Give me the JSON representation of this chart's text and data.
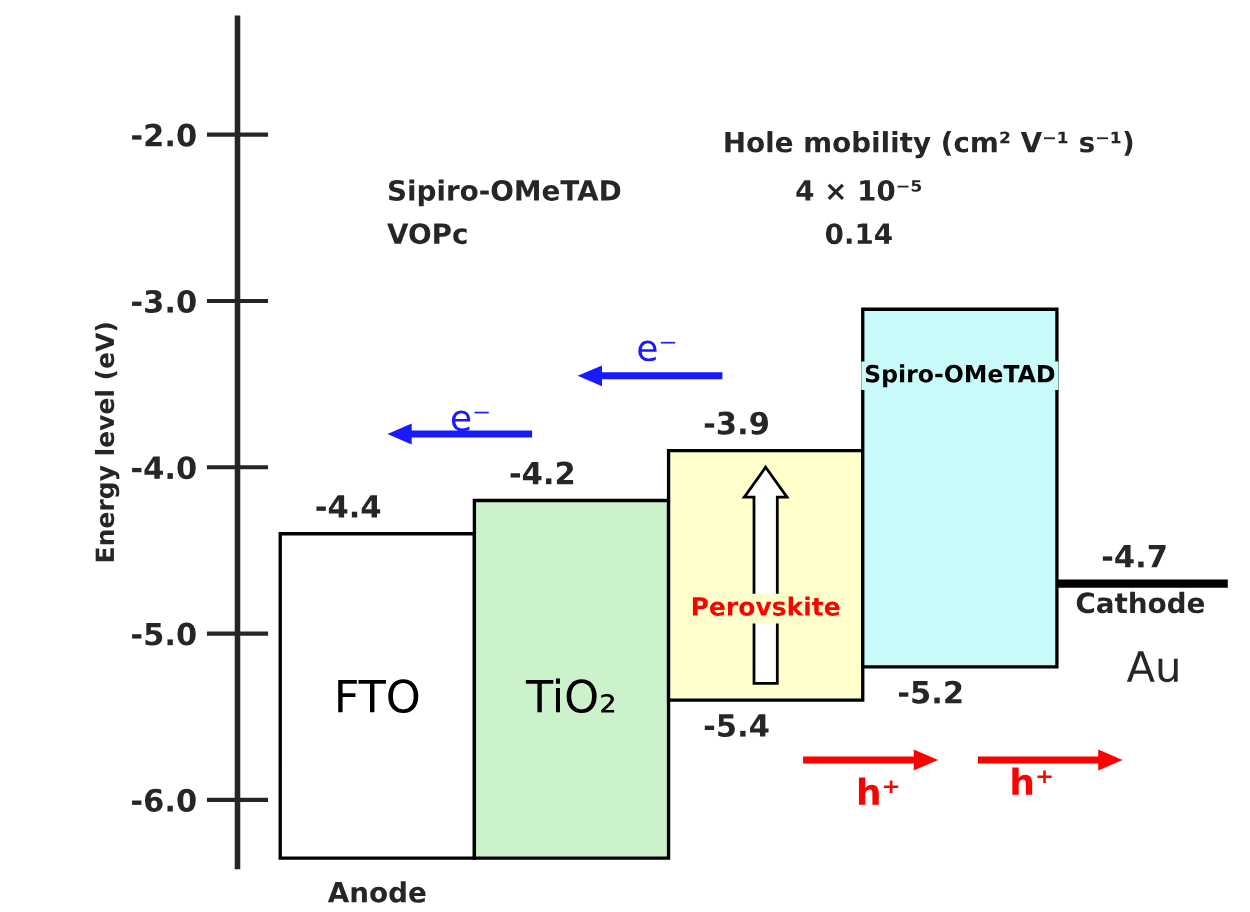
{
  "chart_data": {
    "type": "bar",
    "categories": [
      "FTO",
      "TiO₂",
      "Perovskite",
      "Spiro-OMeTAD"
    ],
    "values": [
      1.95,
      2.15,
      1.5,
      2.15
    ],
    "base": [
      -6.35,
      -6.35,
      -5.4,
      -5.2
    ],
    "colors": [
      "#ffffff",
      "#ccf2cc",
      "#ffffcc",
      "#c8fafa"
    ],
    "ylabel": "Energy level (eV)",
    "ylim": [
      -6.4,
      -1.3
    ],
    "yticks": [
      {
        "value": -6,
        "label": "-6.0"
      },
      {
        "value": -5,
        "label": "-5.0"
      },
      {
        "value": -4,
        "label": "-4.0"
      },
      {
        "value": -3,
        "label": "-3.0"
      },
      {
        "value": -2,
        "label": "-2.0"
      }
    ],
    "tick_labels": "y",
    "grid": false,
    "ref_lines": [
      {
        "axis": "y",
        "value": -4.7,
        "label": "-4.7",
        "color": "#000000"
      }
    ],
    "annotations": [
      {
        "text": "-4.4",
        "x": "FTO",
        "y": -4.4
      },
      {
        "text": "-4.2",
        "x": "TiO₂",
        "y": -4.2
      },
      {
        "text": "-3.9",
        "x": "Perovskite",
        "y": -3.9
      },
      {
        "text": "-5.4",
        "x": "Perovskite",
        "y": -5.4
      },
      {
        "text": "-5.2",
        "x": "Spiro-OMeTAD",
        "y": -5.2
      },
      "Anode",
      "Cathode",
      "Au",
      "Hole mobility (cm² V⁻¹ s⁻¹)",
      "Sipiro-OMeTAD",
      "4 × 10⁻⁵",
      "VOPc",
      "0.14",
      "e⁻",
      "e⁻",
      "h⁺",
      "h⁺"
    ]
  }
}
